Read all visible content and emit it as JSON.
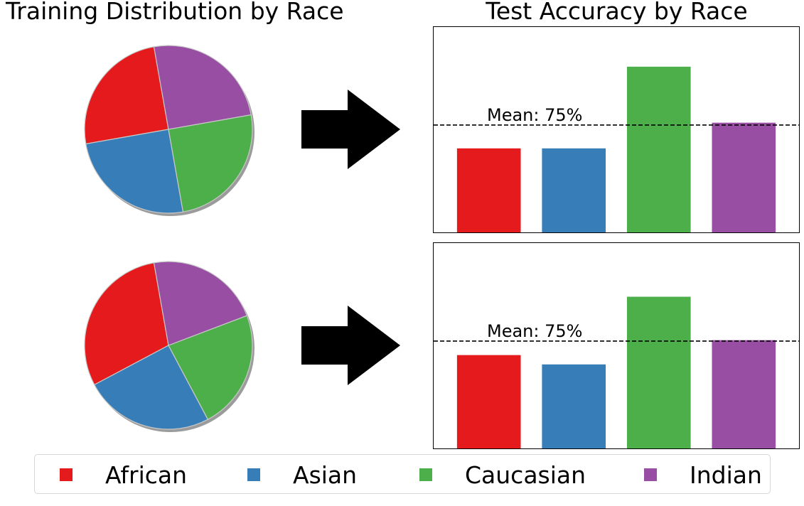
{
  "titles": {
    "left": "Training Distribution by Race",
    "right": "Test Accuracy by Race"
  },
  "colors": {
    "African": "#e41a1c",
    "Asian": "#377eb8",
    "Caucasian": "#4daf4a",
    "Indian": "#984ea3"
  },
  "legend": [
    "African",
    "Asian",
    "Caucasian",
    "Indian"
  ],
  "chart_data": [
    {
      "type": "pie",
      "panel": "top-left",
      "categories": [
        "African",
        "Asian",
        "Caucasian",
        "Indian"
      ],
      "values": [
        25,
        25,
        25,
        25
      ],
      "shadow": true
    },
    {
      "type": "bar",
      "panel": "top-right",
      "categories": [
        "African",
        "Asian",
        "Caucasian",
        "Indian"
      ],
      "values": [
        70,
        70,
        87.5,
        75.5
      ],
      "ylim": [
        52,
        96
      ],
      "mean_line": 75,
      "mean_label": "Mean: 75%",
      "xticks": false,
      "yticks": false
    },
    {
      "type": "pie",
      "panel": "bottom-left",
      "categories": [
        "African",
        "Asian",
        "Caucasian",
        "Indian"
      ],
      "values": [
        30,
        25,
        23,
        22
      ],
      "shadow": true
    },
    {
      "type": "bar",
      "panel": "bottom-right",
      "categories": [
        "African",
        "Asian",
        "Caucasian",
        "Indian"
      ],
      "values": [
        72,
        70,
        84.5,
        75.2
      ],
      "ylim": [
        52,
        96
      ],
      "mean_line": 75,
      "mean_label": "Mean: 75%",
      "xticks": false,
      "yticks": false
    }
  ]
}
